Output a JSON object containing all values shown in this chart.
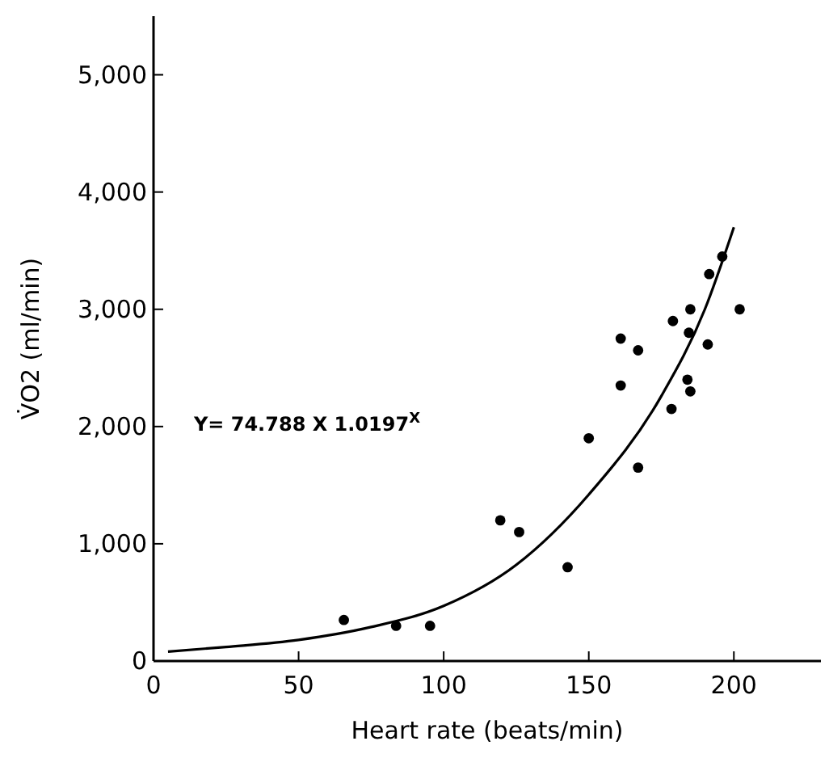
{
  "chart_data": {
    "type": "scatter",
    "xlabel": "Heart rate (beats/min)",
    "ylabel": "V̇O2 (ml/min)",
    "xlim": [
      0,
      230
    ],
    "xticks": [
      0,
      50,
      100,
      150,
      200
    ],
    "ylim": [
      0,
      5500
    ],
    "yticks": [
      0,
      {
        "value": 1000,
        "label": "1,000"
      },
      {
        "value": 2000,
        "label": "2,000"
      },
      {
        "value": 3000,
        "label": "3,000"
      },
      {
        "value": 4000,
        "label": "4,000"
      },
      {
        "value": 5000,
        "label": "5,000"
      }
    ],
    "grid": false,
    "marker": "circle",
    "annotations": [
      "Y= 74.788 X 1.0197$^{X}$"
    ],
    "series": [
      {
        "color": "#000000",
        "x": [
          65.6,
          83.6,
          95.3,
          119.5,
          126,
          142.7,
          150,
          167,
          161,
          167,
          161,
          178.5,
          184,
          185,
          191,
          184.5,
          179,
          185,
          202,
          191.5,
          196
        ],
        "values": [
          350,
          300,
          300,
          1200,
          1100,
          800,
          1900,
          1650,
          2350,
          2650,
          2750,
          2150,
          2400,
          2300,
          2700,
          2800,
          2900,
          3000,
          3000,
          3300,
          3450
        ]
      },
      {
        "type": "line",
        "color": "#000000",
        "marker": "none",
        "line_style": "solid",
        "x": [
          5,
          25,
          50,
          75,
          100,
          125,
          150,
          175,
          190,
          200
        ],
        "values": [
          80,
          120,
          180,
          290,
          470,
          820,
          1420,
          2260,
          3000,
          3700
        ]
      }
    ]
  }
}
